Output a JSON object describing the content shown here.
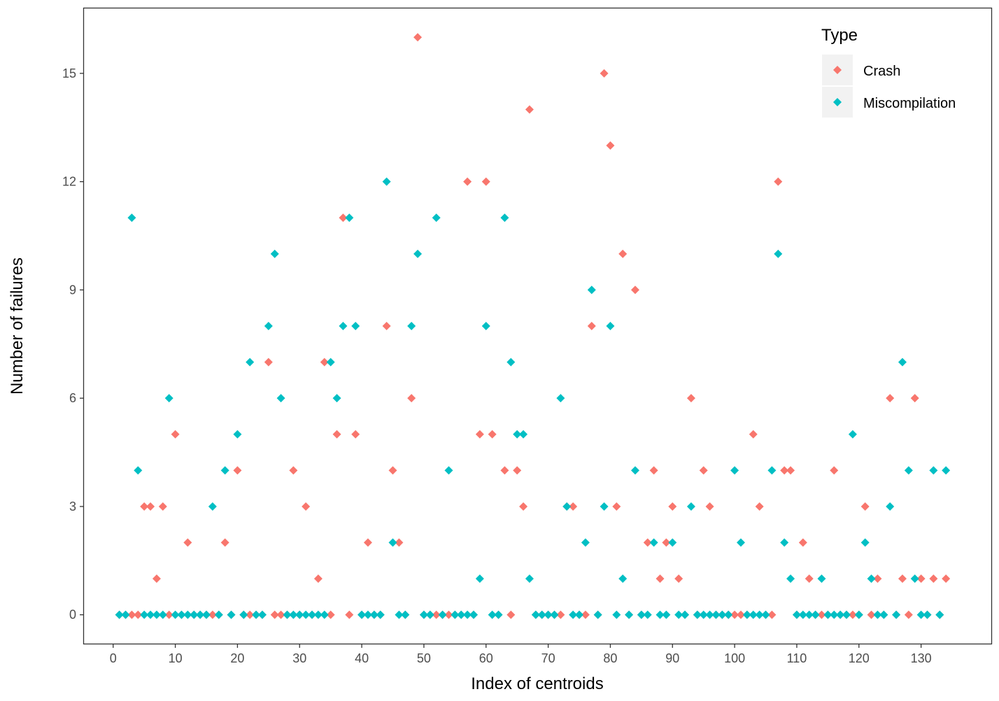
{
  "chart_data": {
    "type": "scatter",
    "title": "",
    "xlabel": "Index of centroids",
    "ylabel": "Number of failures",
    "xlim": [
      -4.7,
      141.3
    ],
    "ylim": [
      -0.8,
      16.8
    ],
    "xticks": [
      0,
      10,
      20,
      30,
      40,
      50,
      60,
      70,
      80,
      90,
      100,
      110,
      120,
      130
    ],
    "xtick_labels": [
      "0",
      "10",
      "20",
      "30",
      "40",
      "50",
      "60",
      "70",
      "80",
      "90",
      "100",
      "110",
      "120",
      "130"
    ],
    "yticks": [
      0,
      3,
      6,
      9,
      12,
      15
    ],
    "ytick_labels": [
      "0",
      "3",
      "6",
      "9",
      "12",
      "15"
    ],
    "grid": false,
    "legend": {
      "title": "Type",
      "position": "top-right"
    },
    "marker": "diamond",
    "series": [
      {
        "name": "Crash",
        "color": "#F8766D",
        "x": [
          1,
          2,
          3,
          4,
          5,
          6,
          7,
          8,
          9,
          10,
          11,
          12,
          13,
          14,
          15,
          16,
          17,
          18,
          19,
          20,
          21,
          22,
          23,
          24,
          25,
          26,
          27,
          28,
          29,
          30,
          31,
          32,
          33,
          34,
          35,
          36,
          37,
          38,
          39,
          40,
          41,
          42,
          43,
          44,
          45,
          46,
          47,
          48,
          49,
          50,
          51,
          52,
          53,
          54,
          55,
          56,
          57,
          58,
          59,
          60,
          61,
          62,
          63,
          64,
          65,
          66,
          67,
          68,
          69,
          70,
          71,
          72,
          73,
          74,
          75,
          76,
          77,
          78,
          79,
          80,
          81,
          82,
          83,
          84,
          85,
          86,
          87,
          88,
          89,
          90,
          91,
          92,
          93,
          94,
          95,
          96,
          97,
          98,
          99,
          100,
          101,
          102,
          103,
          104,
          105,
          106,
          107,
          108,
          109,
          110,
          111,
          112,
          113,
          114,
          115,
          116,
          117,
          118,
          119,
          120,
          121,
          122,
          123,
          124,
          125,
          126,
          127,
          128,
          129,
          130,
          131,
          132,
          133,
          134
        ],
        "y": [
          0,
          0,
          0,
          0,
          3,
          3,
          1,
          3,
          0,
          5,
          0,
          2,
          0,
          0,
          0,
          0,
          0,
          2,
          0,
          4,
          0,
          0,
          0,
          0,
          7,
          0,
          0,
          0,
          4,
          0,
          3,
          0,
          1,
          7,
          0,
          5,
          11,
          0,
          5,
          0,
          2,
          0,
          0,
          8,
          4,
          2,
          0,
          6,
          16,
          0,
          0,
          0,
          0,
          0,
          0,
          0,
          12,
          0,
          5,
          12,
          5,
          0,
          4,
          0,
          4,
          3,
          14,
          0,
          0,
          0,
          0,
          0,
          3,
          3,
          0,
          0,
          8,
          0,
          15,
          13,
          3,
          10,
          0,
          9,
          0,
          2,
          4,
          1,
          2,
          3,
          1,
          0,
          6,
          0,
          4,
          3,
          0,
          0,
          0,
          0,
          0,
          0,
          5,
          3,
          0,
          0,
          12,
          4,
          4,
          0,
          2,
          1,
          0,
          0,
          0,
          4,
          0,
          0,
          0,
          0,
          3,
          0,
          1,
          0,
          6,
          0,
          1,
          0,
          6,
          1,
          0,
          1,
          0,
          1
        ]
      },
      {
        "name": "Miscompilation",
        "color": "#00BFC4",
        "x": [
          1,
          2,
          3,
          4,
          5,
          6,
          7,
          8,
          9,
          10,
          11,
          12,
          13,
          14,
          15,
          16,
          17,
          18,
          19,
          20,
          21,
          22,
          23,
          24,
          25,
          26,
          27,
          28,
          29,
          30,
          31,
          32,
          33,
          34,
          35,
          36,
          37,
          38,
          39,
          40,
          41,
          42,
          43,
          44,
          45,
          46,
          47,
          48,
          49,
          50,
          51,
          52,
          53,
          54,
          55,
          56,
          57,
          58,
          59,
          60,
          61,
          62,
          63,
          64,
          65,
          66,
          67,
          68,
          69,
          70,
          71,
          72,
          73,
          74,
          75,
          76,
          77,
          78,
          79,
          80,
          81,
          82,
          83,
          84,
          85,
          86,
          87,
          88,
          89,
          90,
          91,
          92,
          93,
          94,
          95,
          96,
          97,
          98,
          99,
          100,
          101,
          102,
          103,
          104,
          105,
          106,
          107,
          108,
          109,
          110,
          111,
          112,
          113,
          114,
          115,
          116,
          117,
          118,
          119,
          120,
          121,
          122,
          123,
          124,
          125,
          126,
          127,
          128,
          129,
          130,
          131,
          132,
          133,
          134
        ],
        "y": [
          0,
          0,
          11,
          4,
          0,
          0,
          0,
          0,
          6,
          0,
          0,
          0,
          0,
          0,
          0,
          3,
          0,
          4,
          0,
          5,
          0,
          7,
          0,
          0,
          8,
          10,
          6,
          0,
          0,
          0,
          0,
          0,
          0,
          0,
          7,
          6,
          8,
          11,
          8,
          0,
          0,
          0,
          0,
          12,
          2,
          0,
          0,
          8,
          10,
          0,
          0,
          11,
          0,
          4,
          0,
          0,
          0,
          0,
          1,
          8,
          0,
          0,
          11,
          7,
          5,
          5,
          1,
          0,
          0,
          0,
          0,
          6,
          3,
          0,
          0,
          2,
          9,
          0,
          3,
          8,
          0,
          1,
          0,
          4,
          0,
          0,
          2,
          0,
          0,
          2,
          0,
          0,
          3,
          0,
          0,
          0,
          0,
          0,
          0,
          4,
          2,
          0,
          0,
          0,
          0,
          4,
          10,
          2,
          1,
          0,
          0,
          0,
          0,
          1,
          0,
          0,
          0,
          0,
          5,
          0,
          2,
          1,
          0,
          0,
          3,
          0,
          7,
          4,
          1,
          0,
          0,
          4,
          0,
          4
        ]
      }
    ]
  }
}
